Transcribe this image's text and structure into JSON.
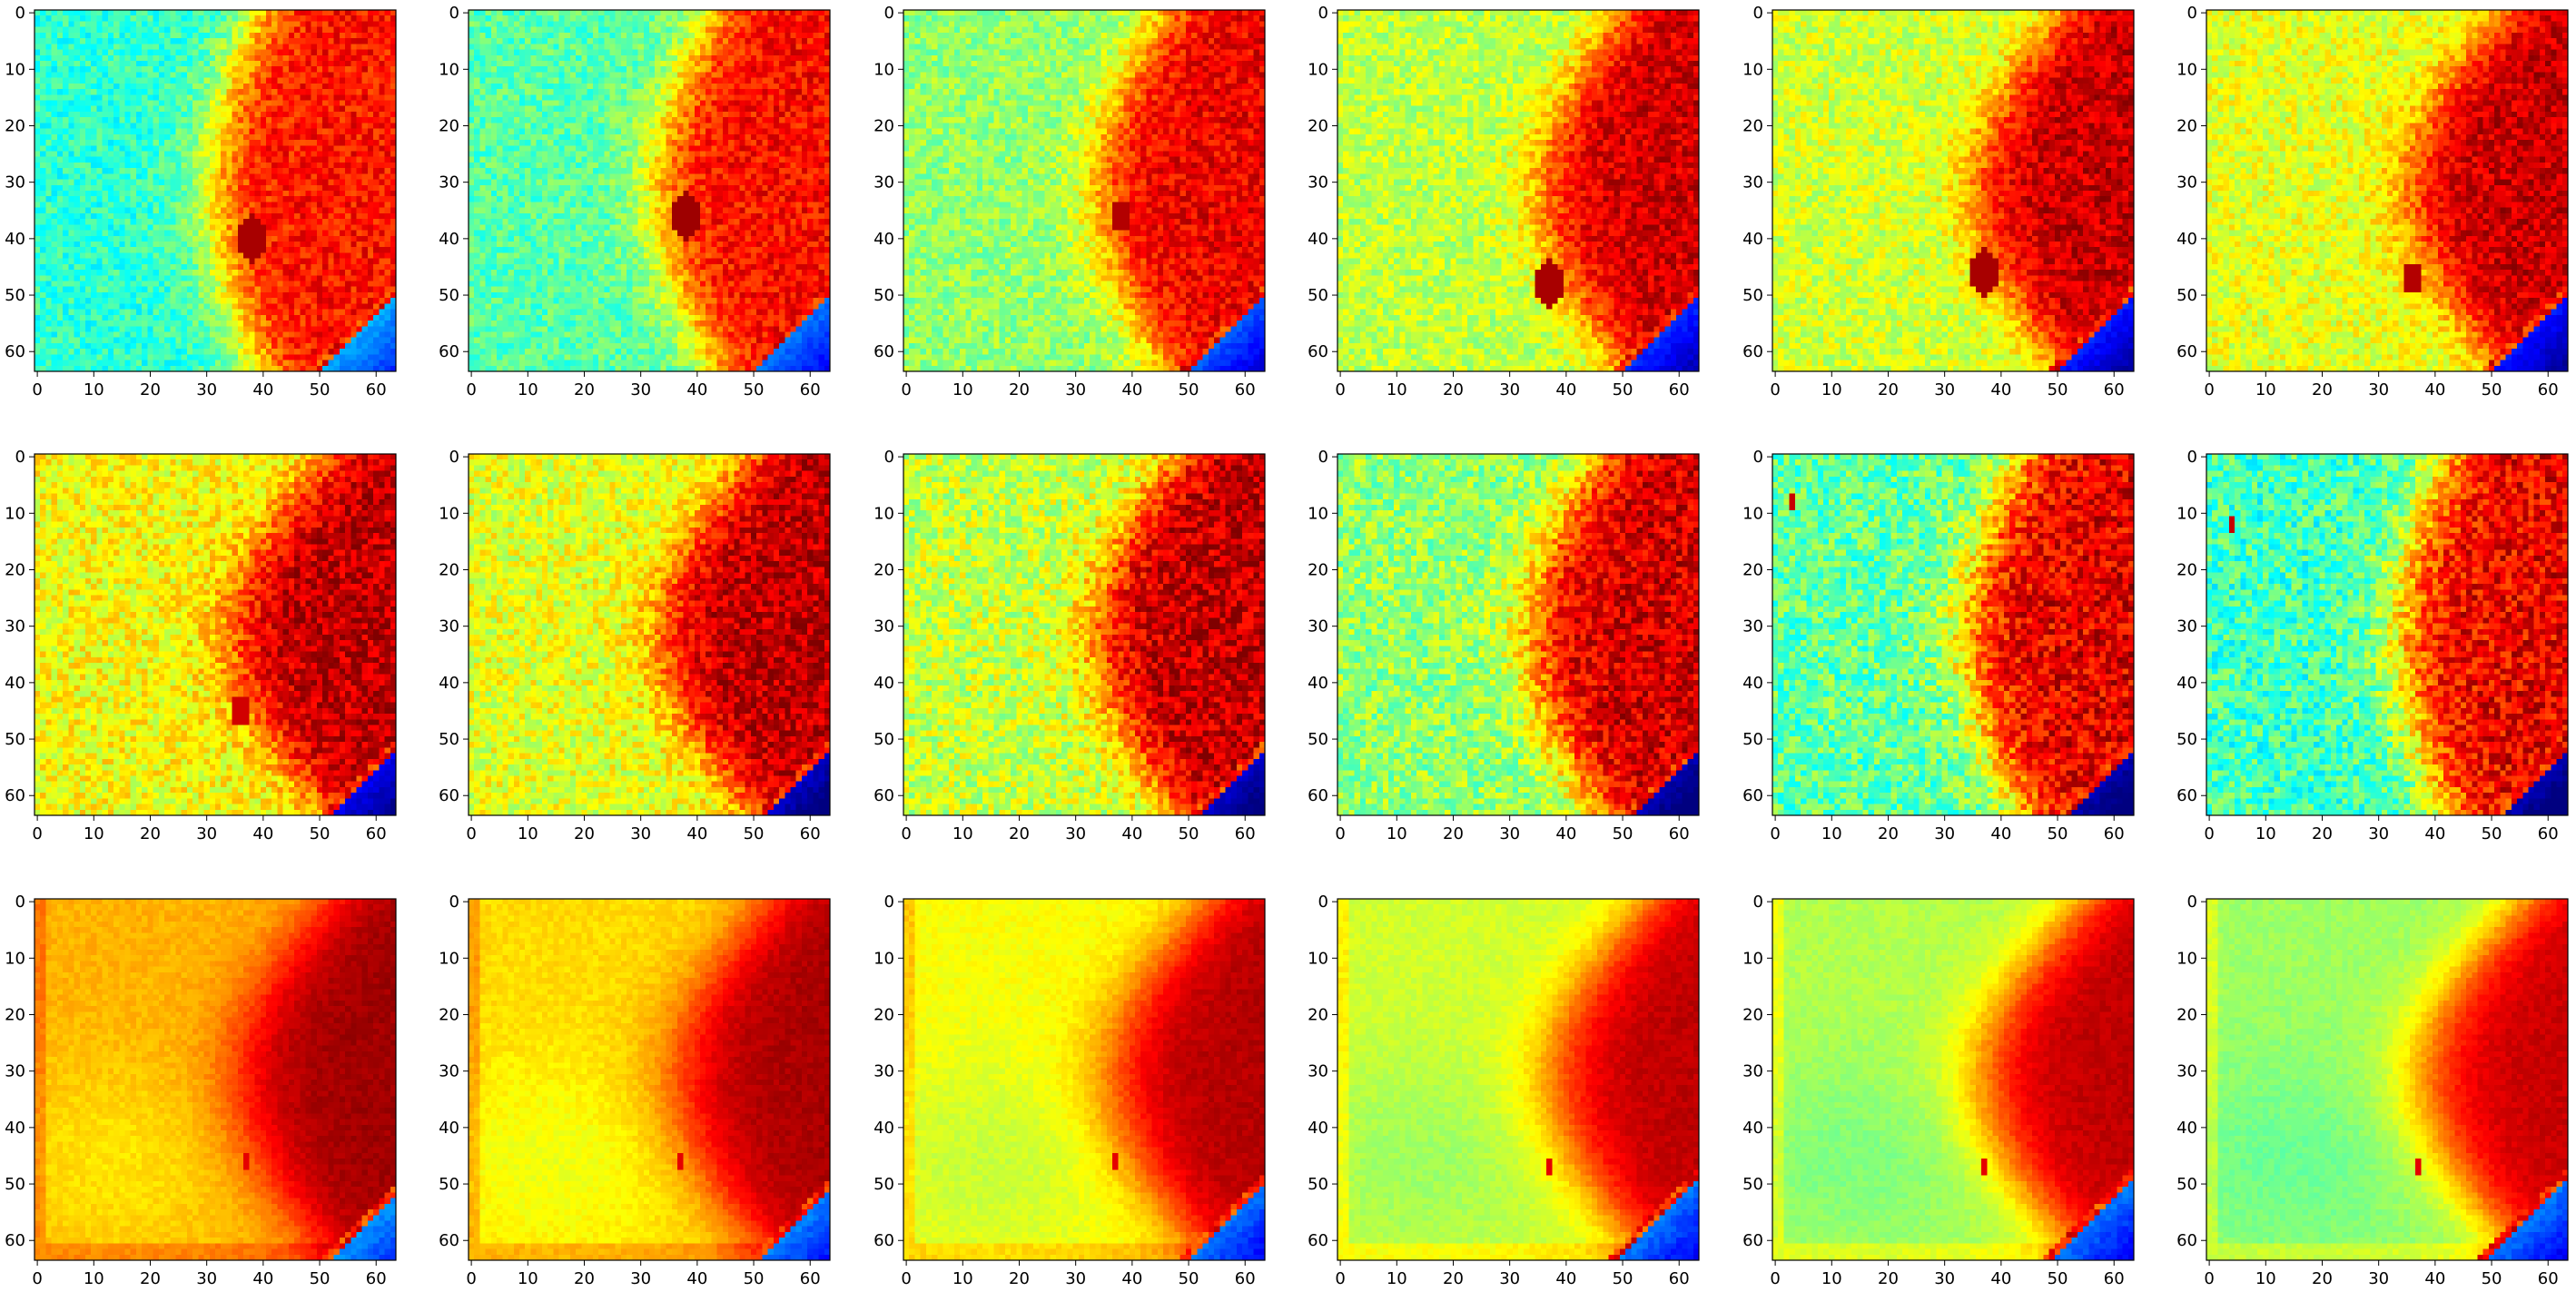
{
  "figure": {
    "rows": 3,
    "cols": 6,
    "colormap": "jet",
    "colormap_stops": [
      "#00007f",
      "#0000ff",
      "#007fff",
      "#00ffff",
      "#7fff7f",
      "#ffff00",
      "#ff7f00",
      "#ff0000",
      "#7f0000"
    ],
    "background": "#ffffff",
    "frame_color": "#000000"
  },
  "chart_data": {
    "type": "heatmap",
    "grid_size": [
      64,
      64
    ],
    "xlim": [
      0,
      63
    ],
    "ylim": [
      63,
      0
    ],
    "x_ticks": [
      0,
      10,
      20,
      30,
      40,
      50,
      60
    ],
    "y_ticks": [
      0,
      10,
      20,
      30,
      40,
      50,
      60
    ],
    "x_tick_labels": [
      "0",
      "10",
      "20",
      "30",
      "40",
      "50",
      "60"
    ],
    "y_tick_labels": [
      "0",
      "10",
      "20",
      "30",
      "40",
      "50",
      "60"
    ],
    "title": "",
    "xlabel": "",
    "ylabel": "",
    "panels": [
      {
        "row": 0,
        "col": 0,
        "left_level": 0.42,
        "boundary_x": 37,
        "boundary_curve": 8,
        "right_level": 0.86,
        "noise": 0.07,
        "smooth": false,
        "corner": {
          "size": 13,
          "level": 0.3
        },
        "blob": {
          "x": 38,
          "y": 40,
          "r": 3,
          "level": 0.96
        }
      },
      {
        "row": 0,
        "col": 1,
        "left_level": 0.46,
        "boundary_x": 41,
        "boundary_curve": 10,
        "right_level": 0.87,
        "noise": 0.07,
        "smooth": false,
        "corner": {
          "size": 13,
          "level": 0.25
        },
        "blob": {
          "x": 38,
          "y": 36,
          "r": 3,
          "level": 0.97
        }
      },
      {
        "row": 0,
        "col": 2,
        "left_level": 0.52,
        "boundary_x": 44,
        "boundary_curve": 12,
        "right_level": 0.89,
        "noise": 0.07,
        "smooth": false,
        "corner": {
          "size": 13,
          "level": 0.22
        },
        "blob": {
          "x": 38,
          "y": 36,
          "r": 2,
          "level": 0.95
        }
      },
      {
        "row": 0,
        "col": 3,
        "left_level": 0.56,
        "boundary_x": 48,
        "boundary_curve": 14,
        "right_level": 0.92,
        "noise": 0.07,
        "smooth": false,
        "corner": {
          "size": 13,
          "level": 0.18
        },
        "blob": {
          "x": 37,
          "y": 48,
          "r": 3,
          "level": 0.96
        }
      },
      {
        "row": 0,
        "col": 4,
        "left_level": 0.58,
        "boundary_x": 49,
        "boundary_curve": 15,
        "right_level": 0.93,
        "noise": 0.07,
        "smooth": false,
        "corner": {
          "size": 13,
          "level": 0.16
        },
        "blob": {
          "x": 37,
          "y": 46,
          "r": 3,
          "level": 0.96
        }
      },
      {
        "row": 0,
        "col": 5,
        "left_level": 0.6,
        "boundary_x": 50,
        "boundary_curve": 16,
        "right_level": 0.93,
        "noise": 0.07,
        "smooth": false,
        "corner": {
          "size": 13,
          "level": 0.15
        },
        "blob": {
          "x": 36,
          "y": 47,
          "r": 2,
          "level": 0.95
        }
      },
      {
        "row": 1,
        "col": 0,
        "left_level": 0.62,
        "boundary_x": 50,
        "boundary_curve": 17,
        "right_level": 0.94,
        "noise": 0.08,
        "smooth": false,
        "corner": {
          "size": 11,
          "level": 0.12
        },
        "blob": {
          "x": 36,
          "y": 45,
          "r": 2,
          "level": 0.92
        }
      },
      {
        "row": 1,
        "col": 1,
        "left_level": 0.6,
        "boundary_x": 48,
        "boundary_curve": 16,
        "right_level": 0.94,
        "noise": 0.08,
        "smooth": false,
        "corner": {
          "size": 11,
          "level": 0.08
        },
        "blob": {
          "x": 41,
          "y": 40,
          "r": 1,
          "level": 0.92
        }
      },
      {
        "row": 1,
        "col": 2,
        "left_level": 0.57,
        "boundary_x": 46,
        "boundary_curve": 14,
        "right_level": 0.94,
        "noise": 0.09,
        "smooth": false,
        "corner": {
          "size": 11,
          "level": 0.08
        },
        "blob": {
          "x": 40,
          "y": 40,
          "r": 1,
          "level": 0.9
        }
      },
      {
        "row": 1,
        "col": 3,
        "left_level": 0.52,
        "boundary_x": 44,
        "boundary_curve": 12,
        "right_level": 0.92,
        "noise": 0.09,
        "smooth": false,
        "corner": {
          "size": 11,
          "level": 0.06
        },
        "blob": {
          "x": 40,
          "y": 40,
          "r": 0,
          "level": 0.9
        }
      },
      {
        "row": 1,
        "col": 4,
        "left_level": 0.47,
        "boundary_x": 42,
        "boundary_curve": 10,
        "right_level": 0.9,
        "noise": 0.1,
        "smooth": false,
        "corner": {
          "size": 11,
          "level": 0.06
        },
        "blob": {
          "x": 3,
          "y": 8,
          "r": 1,
          "level": 0.93
        }
      },
      {
        "row": 1,
        "col": 5,
        "left_level": 0.44,
        "boundary_x": 40,
        "boundary_curve": 8,
        "right_level": 0.89,
        "noise": 0.1,
        "smooth": false,
        "corner": {
          "size": 11,
          "level": 0.06
        },
        "blob": {
          "x": 4,
          "y": 12,
          "r": 1,
          "level": 0.93
        }
      },
      {
        "row": 2,
        "col": 0,
        "left_level": 0.7,
        "boundary_x": 50,
        "boundary_curve": 16,
        "right_level": 0.97,
        "noise": 0.02,
        "smooth": true,
        "corner": {
          "size": 11,
          "level": 0.28
        },
        "blob": {
          "x": 37,
          "y": 46,
          "r": 1,
          "level": 0.9
        }
      },
      {
        "row": 2,
        "col": 1,
        "left_level": 0.66,
        "boundary_x": 51,
        "boundary_curve": 16,
        "right_level": 0.96,
        "noise": 0.02,
        "smooth": true,
        "corner": {
          "size": 12,
          "level": 0.26
        },
        "blob": {
          "x": 37,
          "y": 46,
          "r": 1,
          "level": 0.9
        }
      },
      {
        "row": 2,
        "col": 2,
        "left_level": 0.62,
        "boundary_x": 52,
        "boundary_curve": 17,
        "right_level": 0.95,
        "noise": 0.02,
        "smooth": true,
        "corner": {
          "size": 13,
          "level": 0.25
        },
        "blob": {
          "x": 37,
          "y": 46,
          "r": 1,
          "level": 0.9
        }
      },
      {
        "row": 2,
        "col": 3,
        "left_level": 0.58,
        "boundary_x": 53,
        "boundary_curve": 17,
        "right_level": 0.94,
        "noise": 0.02,
        "smooth": true,
        "corner": {
          "size": 14,
          "level": 0.25
        },
        "blob": {
          "x": 37,
          "y": 47,
          "r": 1,
          "level": 0.9
        }
      },
      {
        "row": 2,
        "col": 4,
        "left_level": 0.55,
        "boundary_x": 53,
        "boundary_curve": 18,
        "right_level": 0.94,
        "noise": 0.02,
        "smooth": true,
        "corner": {
          "size": 14,
          "level": 0.25
        },
        "blob": {
          "x": 37,
          "y": 47,
          "r": 1,
          "level": 0.9
        }
      },
      {
        "row": 2,
        "col": 5,
        "left_level": 0.53,
        "boundary_x": 54,
        "boundary_curve": 18,
        "right_level": 0.93,
        "noise": 0.02,
        "smooth": true,
        "corner": {
          "size": 14,
          "level": 0.25
        },
        "blob": {
          "x": 37,
          "y": 47,
          "r": 1,
          "level": 0.9
        }
      }
    ]
  }
}
